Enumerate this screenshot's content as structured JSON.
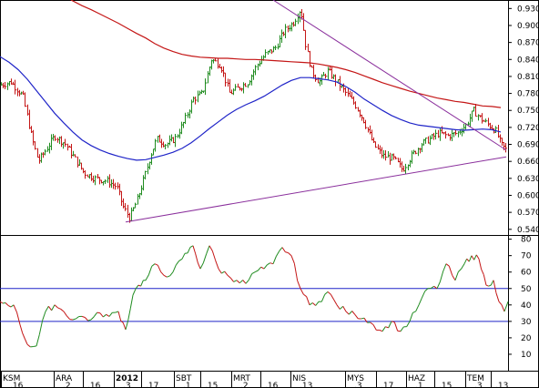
{
  "chart_data": [
    {
      "type": "line",
      "panel": "price",
      "description_style": "OHLC bars (up bars green, down bars red) with two moving averages and two trend lines",
      "ylim": [
        0.53,
        0.945
      ],
      "y_ticks": [
        "0.930",
        "0.900",
        "0.870",
        "0.840",
        "0.810",
        "0.780",
        "0.750",
        "0.720",
        "0.690",
        "0.660",
        "0.630",
        "0.600",
        "0.570",
        "0.540"
      ],
      "ma_fast": {
        "color": "#1f24c8",
        "points": [
          [
            0,
            0.845
          ],
          [
            10,
            0.835
          ],
          [
            20,
            0.822
          ],
          [
            30,
            0.805
          ],
          [
            40,
            0.785
          ],
          [
            50,
            0.765
          ],
          [
            60,
            0.745
          ],
          [
            70,
            0.728
          ],
          [
            80,
            0.712
          ],
          [
            90,
            0.698
          ],
          [
            100,
            0.688
          ],
          [
            110,
            0.68
          ],
          [
            120,
            0.674
          ],
          [
            130,
            0.669
          ],
          [
            140,
            0.665
          ],
          [
            150,
            0.662
          ],
          [
            160,
            0.663
          ],
          [
            170,
            0.667
          ],
          [
            180,
            0.671
          ],
          [
            190,
            0.676
          ],
          [
            200,
            0.683
          ],
          [
            210,
            0.693
          ],
          [
            220,
            0.705
          ],
          [
            230,
            0.718
          ],
          [
            240,
            0.73
          ],
          [
            250,
            0.742
          ],
          [
            260,
            0.752
          ],
          [
            270,
            0.76
          ],
          [
            280,
            0.767
          ],
          [
            290,
            0.775
          ],
          [
            300,
            0.785
          ],
          [
            310,
            0.795
          ],
          [
            320,
            0.803
          ],
          [
            330,
            0.808
          ],
          [
            340,
            0.808
          ],
          [
            350,
            0.806
          ],
          [
            360,
            0.804
          ],
          [
            370,
            0.8
          ],
          [
            380,
            0.792
          ],
          [
            390,
            0.782
          ],
          [
            400,
            0.77
          ],
          [
            410,
            0.76
          ],
          [
            420,
            0.75
          ],
          [
            430,
            0.741
          ],
          [
            440,
            0.734
          ],
          [
            450,
            0.728
          ],
          [
            460,
            0.724
          ],
          [
            470,
            0.722
          ],
          [
            480,
            0.72
          ],
          [
            490,
            0.718
          ],
          [
            500,
            0.716
          ],
          [
            510,
            0.715
          ],
          [
            520,
            0.716
          ],
          [
            530,
            0.717
          ],
          [
            540,
            0.716
          ],
          [
            550,
            0.712
          ]
        ]
      },
      "ma_slow": {
        "color": "#c41616",
        "points": [
          [
            78,
            0.945
          ],
          [
            90,
            0.935
          ],
          [
            100,
            0.928
          ],
          [
            110,
            0.92
          ],
          [
            120,
            0.912
          ],
          [
            130,
            0.904
          ],
          [
            140,
            0.895
          ],
          [
            150,
            0.886
          ],
          [
            160,
            0.878
          ],
          [
            170,
            0.868
          ],
          [
            180,
            0.86
          ],
          [
            190,
            0.854
          ],
          [
            200,
            0.849
          ],
          [
            210,
            0.846
          ],
          [
            220,
            0.844
          ],
          [
            230,
            0.843
          ],
          [
            240,
            0.842
          ],
          [
            250,
            0.842
          ],
          [
            260,
            0.841
          ],
          [
            270,
            0.84
          ],
          [
            280,
            0.84
          ],
          [
            290,
            0.839
          ],
          [
            300,
            0.838
          ],
          [
            310,
            0.837
          ],
          [
            320,
            0.836
          ],
          [
            330,
            0.835
          ],
          [
            340,
            0.834
          ],
          [
            350,
            0.832
          ],
          [
            360,
            0.829
          ],
          [
            370,
            0.826
          ],
          [
            380,
            0.822
          ],
          [
            390,
            0.817
          ],
          [
            400,
            0.811
          ],
          [
            410,
            0.805
          ],
          [
            420,
            0.799
          ],
          [
            430,
            0.794
          ],
          [
            440,
            0.789
          ],
          [
            450,
            0.784
          ],
          [
            460,
            0.78
          ],
          [
            470,
            0.776
          ],
          [
            480,
            0.772
          ],
          [
            490,
            0.769
          ],
          [
            500,
            0.766
          ],
          [
            510,
            0.764
          ],
          [
            520,
            0.761
          ],
          [
            530,
            0.758
          ],
          [
            540,
            0.757
          ],
          [
            550,
            0.755
          ]
        ]
      },
      "trendlines": [
        {
          "color": "#8a2f9c",
          "from": [
            138,
            0.553
          ],
          "to": [
            556,
            0.668
          ]
        },
        {
          "color": "#8a2f9c",
          "from": [
            300,
            0.945
          ],
          "to": [
            556,
            0.68
          ]
        }
      ],
      "price_path": [
        [
          0,
          0.795
        ],
        [
          12,
          0.8
        ],
        [
          25,
          0.775
        ],
        [
          35,
          0.7
        ],
        [
          42,
          0.66
        ],
        [
          52,
          0.685
        ],
        [
          60,
          0.705
        ],
        [
          72,
          0.69
        ],
        [
          82,
          0.665
        ],
        [
          92,
          0.64
        ],
        [
          104,
          0.63
        ],
        [
          118,
          0.625
        ],
        [
          128,
          0.615
        ],
        [
          135,
          0.58
        ],
        [
          142,
          0.56
        ],
        [
          150,
          0.59
        ],
        [
          158,
          0.63
        ],
        [
          165,
          0.67
        ],
        [
          172,
          0.7
        ],
        [
          182,
          0.69
        ],
        [
          192,
          0.7
        ],
        [
          202,
          0.73
        ],
        [
          212,
          0.77
        ],
        [
          222,
          0.78
        ],
        [
          232,
          0.84
        ],
        [
          242,
          0.83
        ],
        [
          252,
          0.78
        ],
        [
          262,
          0.79
        ],
        [
          272,
          0.8
        ],
        [
          282,
          0.83
        ],
        [
          292,
          0.85
        ],
        [
          302,
          0.86
        ],
        [
          312,
          0.89
        ],
        [
          322,
          0.905
        ],
        [
          330,
          0.93
        ],
        [
          336,
          0.86
        ],
        [
          342,
          0.82
        ],
        [
          350,
          0.8
        ],
        [
          360,
          0.82
        ],
        [
          370,
          0.8
        ],
        [
          380,
          0.78
        ],
        [
          390,
          0.76
        ],
        [
          400,
          0.73
        ],
        [
          410,
          0.69
        ],
        [
          420,
          0.67
        ],
        [
          432,
          0.665
        ],
        [
          442,
          0.645
        ],
        [
          452,
          0.67
        ],
        [
          462,
          0.69
        ],
        [
          472,
          0.7
        ],
        [
          482,
          0.71
        ],
        [
          492,
          0.705
        ],
        [
          502,
          0.71
        ],
        [
          512,
          0.725
        ],
        [
          520,
          0.75
        ],
        [
          528,
          0.735
        ],
        [
          536,
          0.725
        ],
        [
          544,
          0.715
        ],
        [
          550,
          0.69
        ],
        [
          556,
          0.68
        ]
      ]
    },
    {
      "type": "line",
      "panel": "oscillator",
      "ylim": [
        0,
        82
      ],
      "y_ticks": [
        "80",
        "70",
        "60",
        "50",
        "40",
        "30",
        "20",
        "10"
      ],
      "reference_lines": [
        50,
        30
      ],
      "line_color": "#208c20",
      "down_color": "#c41616",
      "points": [
        [
          0,
          42
        ],
        [
          15,
          40
        ],
        [
          22,
          28
        ],
        [
          30,
          16
        ],
        [
          40,
          15
        ],
        [
          50,
          36
        ],
        [
          60,
          40
        ],
        [
          70,
          36
        ],
        [
          80,
          31
        ],
        [
          90,
          33
        ],
        [
          100,
          31
        ],
        [
          110,
          35
        ],
        [
          120,
          33
        ],
        [
          130,
          36
        ],
        [
          138,
          25
        ],
        [
          146,
          46
        ],
        [
          152,
          52
        ],
        [
          160,
          55
        ],
        [
          170,
          65
        ],
        [
          180,
          58
        ],
        [
          190,
          60
        ],
        [
          200,
          68
        ],
        [
          212,
          76
        ],
        [
          220,
          62
        ],
        [
          230,
          76
        ],
        [
          240,
          62
        ],
        [
          250,
          58
        ],
        [
          260,
          55
        ],
        [
          270,
          53
        ],
        [
          280,
          60
        ],
        [
          290,
          62
        ],
        [
          300,
          65
        ],
        [
          310,
          75
        ],
        [
          320,
          70
        ],
        [
          330,
          50
        ],
        [
          340,
          40
        ],
        [
          350,
          42
        ],
        [
          360,
          48
        ],
        [
          370,
          40
        ],
        [
          380,
          36
        ],
        [
          390,
          34
        ],
        [
          400,
          32
        ],
        [
          410,
          28
        ],
        [
          420,
          24
        ],
        [
          430,
          30
        ],
        [
          440,
          24
        ],
        [
          450,
          30
        ],
        [
          460,
          40
        ],
        [
          470,
          50
        ],
        [
          480,
          50
        ],
        [
          490,
          65
        ],
        [
          500,
          55
        ],
        [
          510,
          65
        ],
        [
          518,
          70
        ],
        [
          526,
          68
        ],
        [
          534,
          52
        ],
        [
          542,
          55
        ],
        [
          548,
          42
        ],
        [
          554,
          36
        ],
        [
          558,
          42
        ]
      ]
    }
  ],
  "x_axis_labels": [
    {
      "month": "KSM",
      "day": ".16"
    },
    {
      "month": "ARA",
      "day": ".2"
    },
    {
      "month": "",
      "day": ".16"
    },
    {
      "month": "2012",
      "day": ".3"
    },
    {
      "month": "",
      "day": ".17"
    },
    {
      "month": "SBT",
      "day": ".1"
    },
    {
      "month": "",
      "day": ".15"
    },
    {
      "month": "MRT",
      "day": ".2"
    },
    {
      "month": "",
      "day": ".16"
    },
    {
      "month": "NIS",
      "day": ".13"
    },
    {
      "month": "MYS",
      "day": ".3"
    },
    {
      "month": "",
      "day": ".17"
    },
    {
      "month": "HAZ",
      "day": ".1"
    },
    {
      "month": "",
      "day": ".15"
    },
    {
      "month": "TEM",
      "day": ".3"
    },
    {
      "month": "",
      "day": ".13"
    }
  ]
}
